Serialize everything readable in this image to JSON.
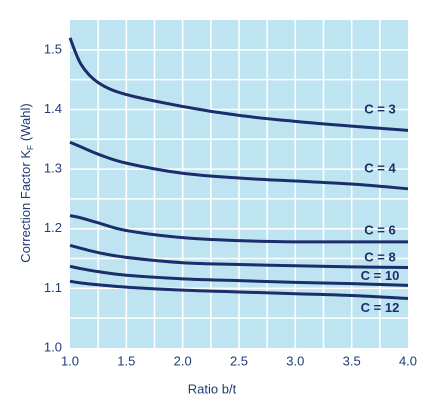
{
  "chart_data": {
    "type": "line",
    "ylabel_main": "Correction Factor K",
    "ylabel_sub": "F",
    "ylabel_end": "(Wahl)",
    "xlabel": "Ratio b/t",
    "x": [
      1.0,
      1.1,
      1.25,
      1.5,
      2.0,
      2.5,
      3.0,
      3.5,
      4.0
    ],
    "series": [
      {
        "name": "C = 3",
        "color": "#1b2d6b",
        "values": [
          1.52,
          1.475,
          1.445,
          1.425,
          1.405,
          1.39,
          1.38,
          1.372,
          1.365
        ]
      },
      {
        "name": "C = 4",
        "color": "#1b2d6b",
        "values": [
          1.345,
          1.337,
          1.325,
          1.31,
          1.293,
          1.285,
          1.28,
          1.275,
          1.267
        ]
      },
      {
        "name": "C = 6",
        "color": "#1b2d6b",
        "values": [
          1.222,
          1.218,
          1.21,
          1.197,
          1.185,
          1.18,
          1.178,
          1.178,
          1.178
        ]
      },
      {
        "name": "C = 8",
        "color": "#1b2d6b",
        "values": [
          1.172,
          1.167,
          1.16,
          1.152,
          1.143,
          1.14,
          1.138,
          1.136,
          1.135
        ]
      },
      {
        "name": "C = 10",
        "color": "#1b2d6b",
        "values": [
          1.137,
          1.133,
          1.128,
          1.122,
          1.116,
          1.113,
          1.11,
          1.108,
          1.105
        ]
      },
      {
        "name": "C = 12",
        "color": "#1b2d6b",
        "values": [
          1.112,
          1.109,
          1.106,
          1.102,
          1.097,
          1.094,
          1.091,
          1.088,
          1.083
        ]
      }
    ],
    "xlim": [
      1.0,
      4.0
    ],
    "ylim": [
      1.0,
      1.55
    ],
    "xticks": [
      {
        "value": 1,
        "label": "1.0"
      },
      1.5,
      {
        "value": 2,
        "label": "2.0"
      },
      2.5,
      {
        "value": 3,
        "label": "3.0"
      },
      3.5,
      {
        "value": 4,
        "label": "4.0"
      }
    ],
    "yticks": [
      {
        "value": 1,
        "label": "1.0"
      },
      1.1,
      1.2,
      1.3,
      1.4,
      1.5
    ],
    "xgrid": [
      1.25,
      1.5,
      1.75,
      2.0,
      2.25,
      2.5,
      2.75,
      3.0,
      3.25,
      3.5,
      3.75
    ],
    "ygrid": [
      1.05,
      1.1,
      1.15,
      1.2,
      1.25,
      1.3,
      1.35,
      1.4,
      1.45,
      1.5
    ],
    "grid": true,
    "background": "#bfe4f1"
  }
}
